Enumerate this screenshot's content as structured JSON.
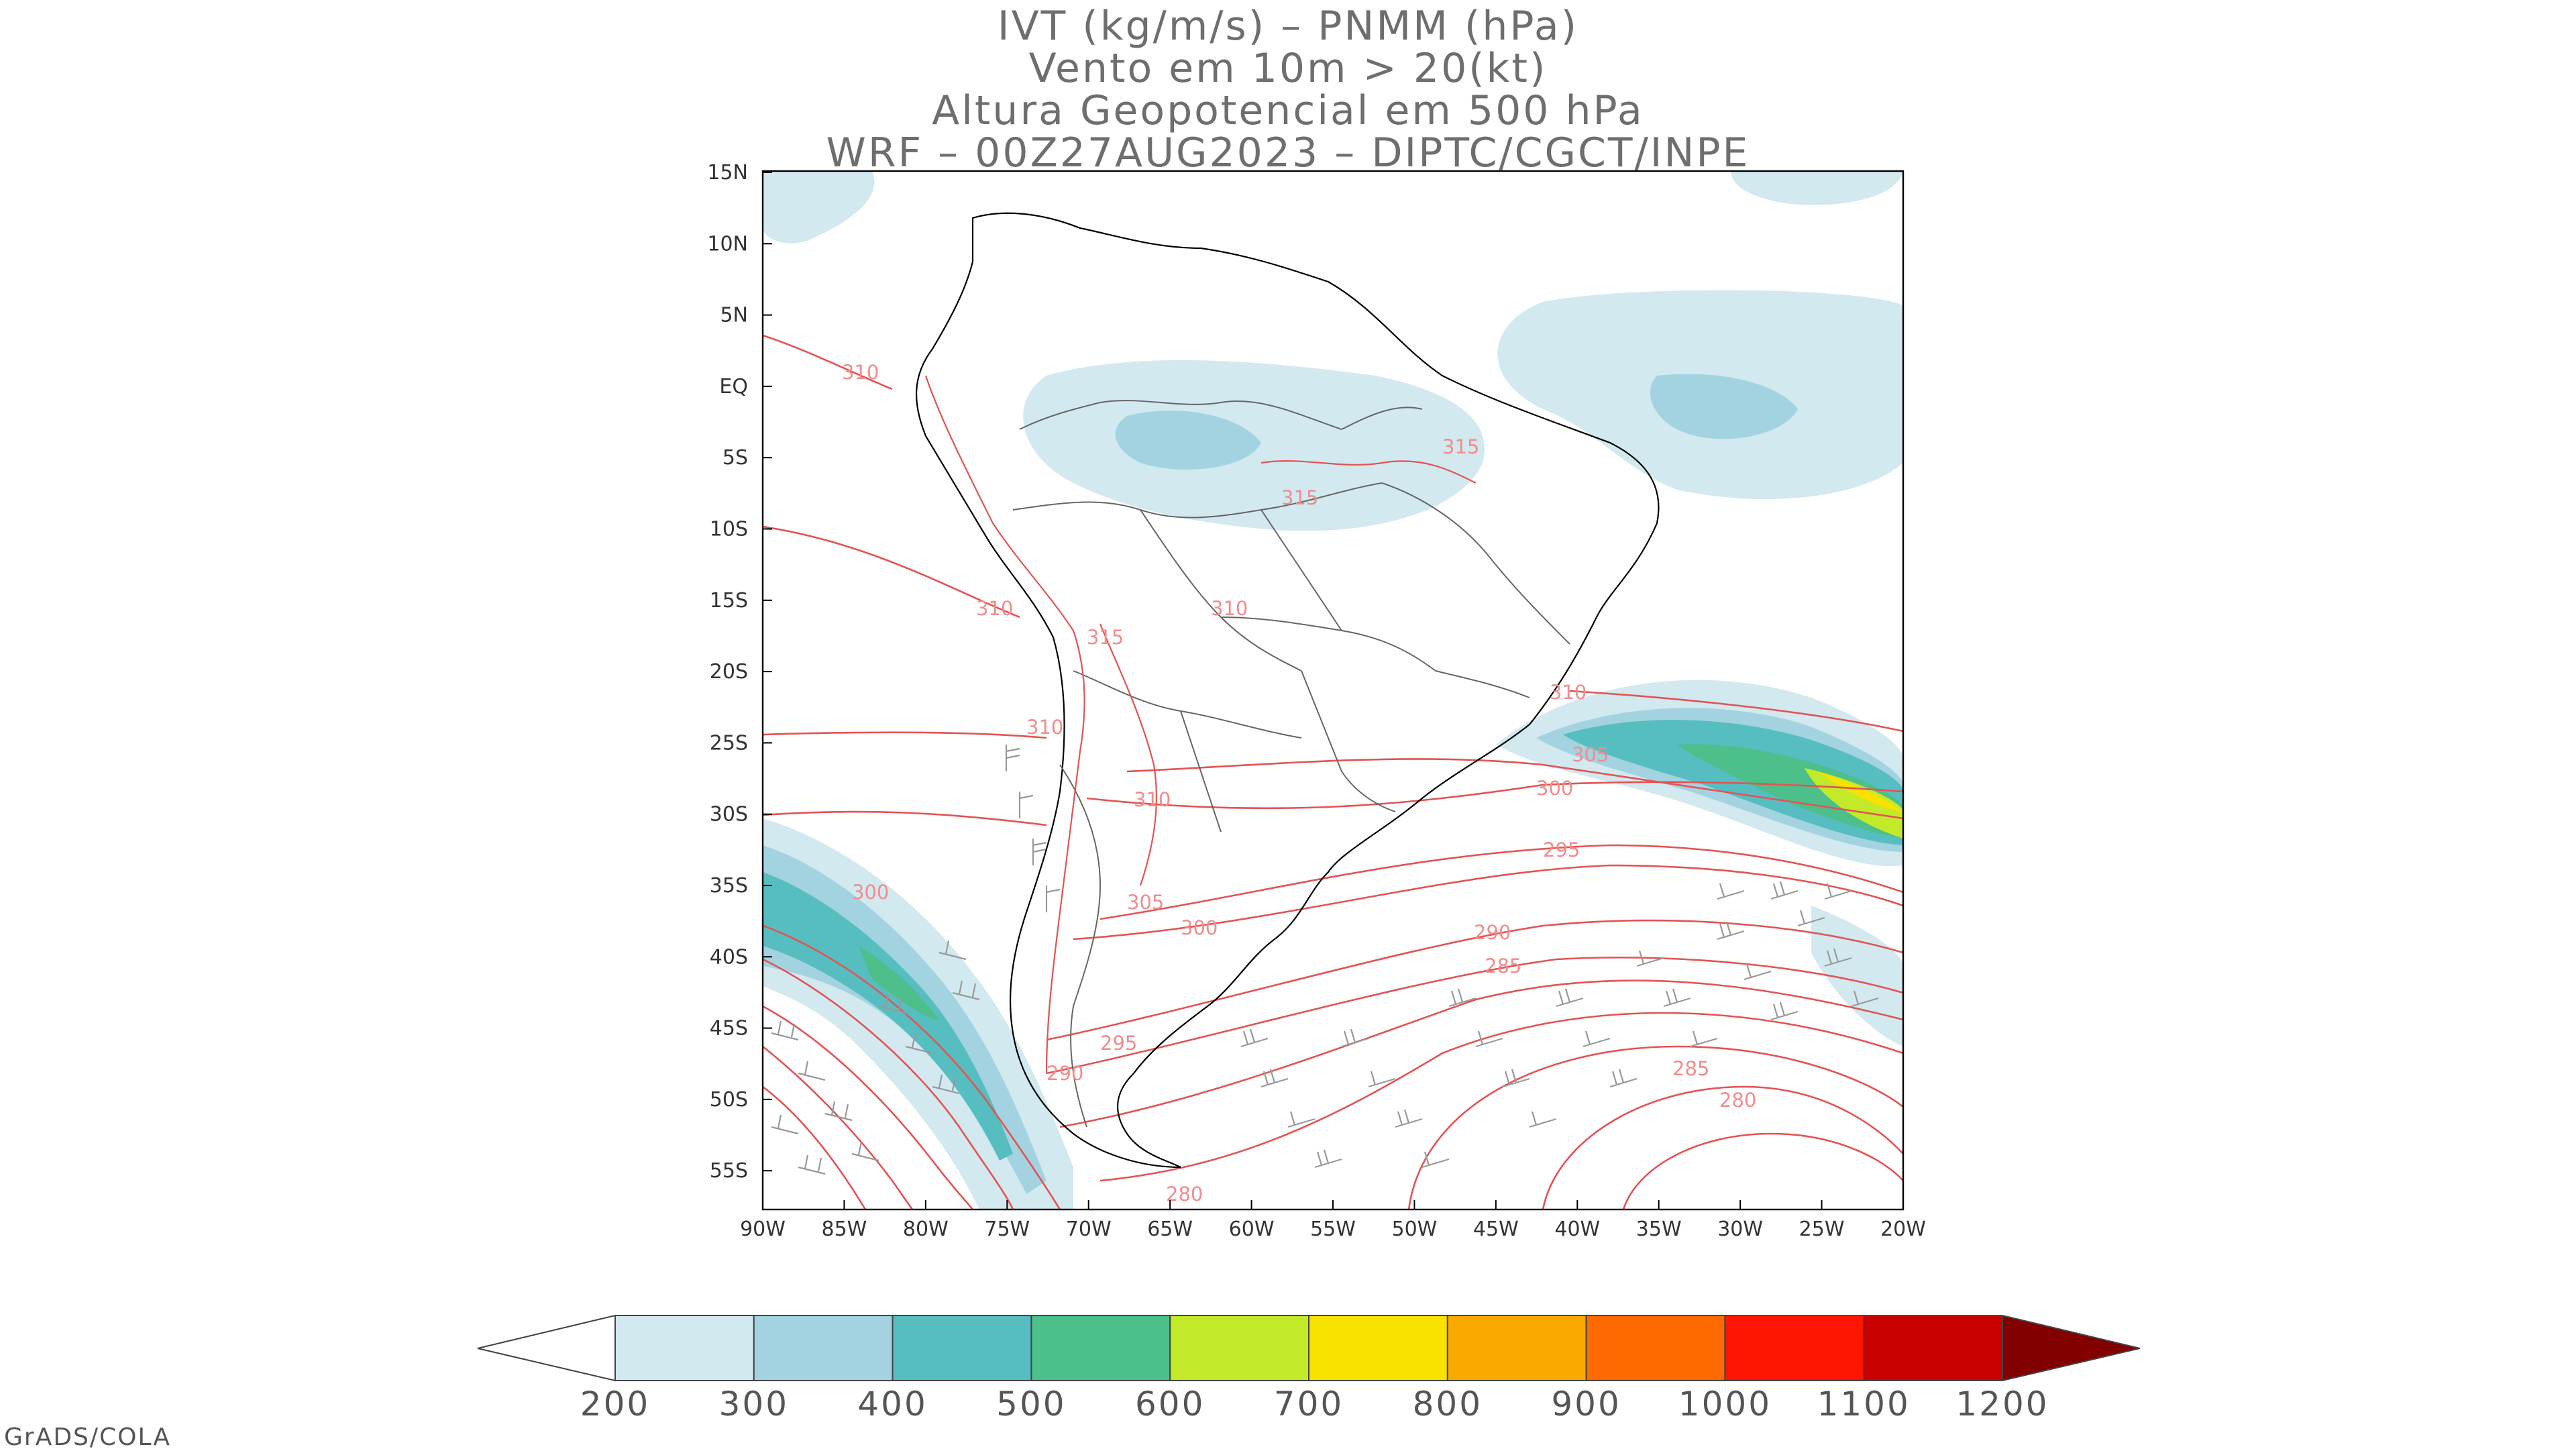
{
  "title": {
    "line1": "IVT (kg/m/s) – PNMM (hPa)",
    "line2": "Vento em 10m > 20(kt)",
    "line3": "Altura Geopotencial em 500 hPa",
    "line4": "WRF – 00Z27AUG2023 – DIPTC/CGCT/INPE"
  },
  "axes": {
    "lat_labels": [
      "15N",
      "10N",
      "5N",
      "EQ",
      "5S",
      "10S",
      "15S",
      "20S",
      "25S",
      "30S",
      "35S",
      "40S",
      "45S",
      "50S",
      "55S"
    ],
    "lon_labels": [
      "90W",
      "85W",
      "80W",
      "75W",
      "70W",
      "65W",
      "60W",
      "55W",
      "50W",
      "45W",
      "40W",
      "35W",
      "30W",
      "25W",
      "20W"
    ],
    "lon_range": [
      -90,
      -20
    ],
    "lat_range": [
      -58,
      15
    ]
  },
  "contour_labels": [
    "310",
    "315",
    "315",
    "310",
    "315",
    "310",
    "310",
    "310",
    "305",
    "300",
    "300",
    "305",
    "300",
    "295",
    "290",
    "285",
    "295",
    "290",
    "280",
    "285",
    "280",
    "310"
  ],
  "colorbar": {
    "levels": [
      "200",
      "300",
      "400",
      "500",
      "600",
      "700",
      "800",
      "900",
      "1000",
      "1100",
      "1200"
    ],
    "colors": [
      "#d3e9f0",
      "#a3d3e0",
      "#56bec0",
      "#4cbf8a",
      "#c3ea29",
      "#f9e100",
      "#f9a900",
      "#ff6a00",
      "#ff1600",
      "#c80000",
      "#830000"
    ],
    "under_color": "#ffffff"
  },
  "colors": {
    "contour": "#e35353",
    "coast": "#000000",
    "border": "#666666",
    "barb": "#999999"
  },
  "credit": "GrADS/COLA"
}
